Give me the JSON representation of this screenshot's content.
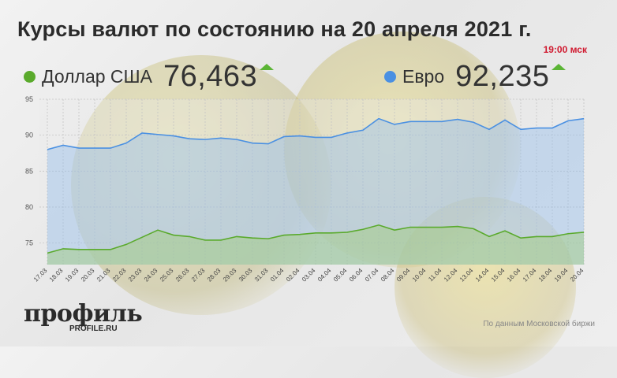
{
  "header": {
    "title": "Курсы валют по состоянию на 20 апреля 2021 г.",
    "time": "19:00 мск"
  },
  "legend": {
    "usd": {
      "name": "Доллар США",
      "value": "76,463",
      "color": "#5aaa2c",
      "trend": "up"
    },
    "eur": {
      "name": "Евро",
      "value": "92,235",
      "color": "#4a90e2",
      "trend": "up"
    }
  },
  "footer": {
    "brand": "профиль",
    "brand_url": "PROFILE.RU",
    "source": "По данным Московской биржи"
  },
  "chart_data": {
    "type": "area",
    "x": [
      "17.03",
      "18.03",
      "19.03",
      "20.03",
      "21.03",
      "22.03",
      "23.03",
      "24.03",
      "25.03",
      "26.03",
      "27.03",
      "28.03",
      "29.03",
      "30.03",
      "31.03",
      "01.04",
      "02.04",
      "03.04",
      "04.04",
      "05.04",
      "06.04",
      "07.04",
      "08.04",
      "09.04",
      "10.04",
      "11.04",
      "12.04",
      "13.04",
      "14.04",
      "15.04",
      "16.04",
      "17.04",
      "18.04",
      "19.04",
      "20.04"
    ],
    "series": [
      {
        "name": "Евро",
        "color": "#4a90e2",
        "values": [
          88.0,
          88.6,
          88.2,
          88.2,
          88.2,
          88.9,
          90.3,
          90.1,
          89.9,
          89.5,
          89.4,
          89.6,
          89.4,
          88.9,
          88.8,
          89.8,
          89.9,
          89.7,
          89.7,
          90.3,
          90.7,
          92.3,
          91.5,
          91.9,
          91.9,
          91.9,
          92.2,
          91.8,
          90.8,
          92.1,
          90.8,
          91.0,
          91.0,
          92.0,
          92.3
        ]
      },
      {
        "name": "Доллар США",
        "color": "#5aaa2c",
        "values": [
          73.6,
          74.2,
          74.1,
          74.1,
          74.1,
          74.8,
          75.8,
          76.8,
          76.1,
          75.9,
          75.4,
          75.4,
          75.9,
          75.7,
          75.6,
          76.1,
          76.2,
          76.4,
          76.4,
          76.5,
          76.9,
          77.5,
          76.8,
          77.2,
          77.2,
          77.2,
          77.3,
          77.0,
          75.9,
          76.7,
          75.7,
          75.9,
          75.9,
          76.3,
          76.5
        ]
      }
    ],
    "yticks": [
      75,
      80,
      85,
      90,
      95
    ],
    "ylim": [
      72,
      95
    ],
    "grid": true
  }
}
